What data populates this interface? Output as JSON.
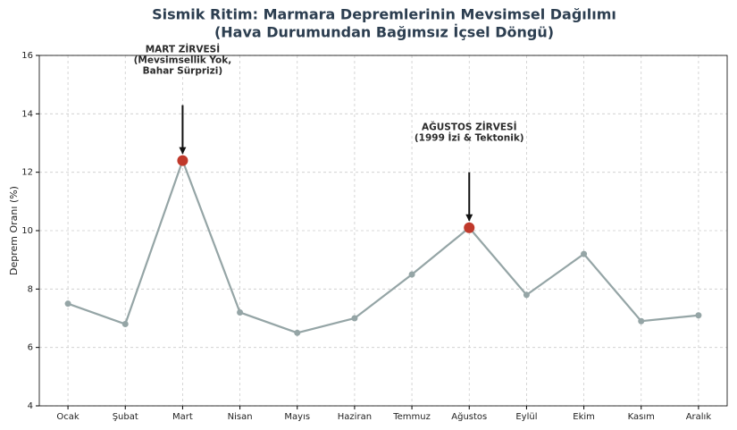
{
  "chart_data": {
    "type": "line",
    "title": "Sismik Ritim: Marmara Depremlerinin Mevsimsel Dağılımı",
    "subtitle": "(Hava Durumundan Bağımsız İçsel Döngü)",
    "y_label": "Deprem Oranı (%)",
    "categories": [
      "Ocak",
      "Şubat",
      "Mart",
      "Nisan",
      "Mayıs",
      "Haziran",
      "Temmuz",
      "Ağustos",
      "Eylül",
      "Ekim",
      "Kasım",
      "Aralık"
    ],
    "series": [
      {
        "color": "#95a5a6",
        "values": [
          7.5,
          6.8,
          12.4,
          7.2,
          6.5,
          7.0,
          8.5,
          10.1,
          7.8,
          9.2,
          6.9,
          7.1
        ]
      }
    ],
    "highlight_color": "#c0392b",
    "annotations": [
      {
        "x": "Mart",
        "text": [
          "MART ZİRVESİ",
          "(Mevsimsellik Yok,",
          "Bahar Sürprizi)"
        ]
      },
      {
        "x": "Ağustos",
        "text": [
          "AĞUSTOS ZİRVESİ",
          "(1999 İzi & Tektonik)"
        ]
      }
    ],
    "ylim": [
      4,
      16
    ],
    "yticks": [
      4,
      6,
      8,
      10,
      12,
      14,
      16
    ],
    "grid": true
  }
}
